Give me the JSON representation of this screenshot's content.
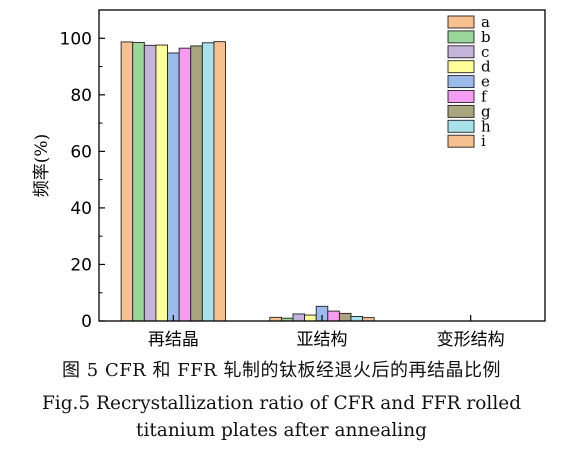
{
  "chart_data": {
    "type": "bar",
    "title": "",
    "xlabel": "",
    "ylabel": "频率(%)",
    "ylim": [
      0,
      110
    ],
    "yticks": [
      0,
      20,
      40,
      60,
      80,
      100
    ],
    "categories": [
      "再结晶",
      "亚结构",
      "变形结构"
    ],
    "legend_position": "top-right",
    "grid": false,
    "series": [
      {
        "name": "a",
        "color": "#f7c08f",
        "values": [
          98.7,
          1.3,
          0
        ]
      },
      {
        "name": "b",
        "color": "#99d699",
        "values": [
          98.5,
          1.0,
          0
        ]
      },
      {
        "name": "c",
        "color": "#c4b4dc",
        "values": [
          97.5,
          2.5,
          0
        ]
      },
      {
        "name": "d",
        "color": "#ffff99",
        "values": [
          97.6,
          2.1,
          0
        ]
      },
      {
        "name": "e",
        "color": "#9bbbeb",
        "values": [
          94.8,
          5.2,
          0
        ]
      },
      {
        "name": "f",
        "color": "#f59cf3",
        "values": [
          96.5,
          3.5,
          0
        ]
      },
      {
        "name": "g",
        "color": "#a9a67f",
        "values": [
          97.3,
          2.7,
          0
        ]
      },
      {
        "name": "h",
        "color": "#a8e1e9",
        "values": [
          98.4,
          1.6,
          0
        ]
      },
      {
        "name": "i",
        "color": "#f7c08f",
        "values": [
          98.8,
          1.2,
          0
        ]
      }
    ]
  },
  "caption": {
    "zh": "图 5  CFR 和 FFR 轧制的钛板经退火后的再结晶比例",
    "en_line1": "Fig.5  Recrystallization ratio of CFR and FFR rolled",
    "en_line2": "titanium plates after annealing"
  }
}
